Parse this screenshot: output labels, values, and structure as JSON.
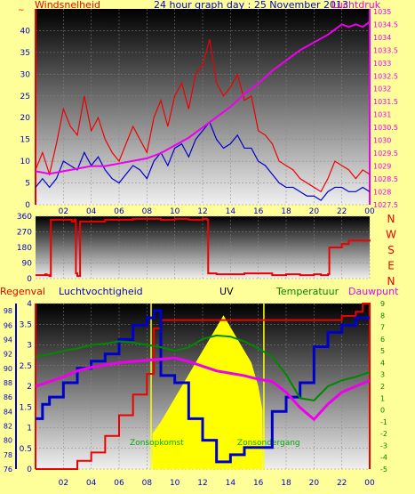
{
  "colors": {
    "background": "#ffff99",
    "wind": "#ee0000",
    "pressure": "#ee00ee",
    "direction": "#ee0000",
    "rain": "#ee0000",
    "humidity": "#0000cc",
    "uv": "#ffff00",
    "temperature": "#008800",
    "dewpoint": "#ee00ee",
    "sunrise": "#00aa00"
  },
  "chart_data": [
    {
      "type": "line",
      "title": "24 hour graph day : 25 November 2013",
      "left_axis_label": "Windsnelheid",
      "left_axis_unit": "~",
      "right_axis_label": "Luchtdruk",
      "x_ticks": [
        "02",
        "04",
        "06",
        "08",
        "10",
        "12",
        "14",
        "16",
        "18",
        "20",
        "22",
        "00"
      ],
      "ylim": [
        0,
        45
      ],
      "y_ticks": [
        "0",
        "5",
        "10",
        "15",
        "20",
        "25",
        "30",
        "35",
        "40"
      ],
      "y2lim": [
        1027.5,
        1035.1
      ],
      "y2_ticks": [
        "1027.5",
        "1028",
        "1028.5",
        "1029",
        "1029.5",
        "1030",
        "1030.5",
        "1031",
        "1031.5",
        "1032",
        "1032.5",
        "1033",
        "1033.5",
        "1034",
        "1034.5",
        "1035"
      ],
      "xlim": [
        0,
        24
      ],
      "series": [
        {
          "key": "wind_gust",
          "color": "#ee0000",
          "x": [
            0,
            0.5,
            1,
            1.5,
            2,
            2.5,
            3,
            3.5,
            4,
            4.5,
            5,
            5.5,
            6,
            6.5,
            7,
            7.5,
            8,
            8.5,
            9,
            9.5,
            10,
            10.5,
            11,
            11.5,
            12,
            12.5,
            13,
            13.5,
            14,
            14.5,
            15,
            15.5,
            16,
            16.5,
            17,
            17.5,
            18,
            18.5,
            19,
            19.5,
            20,
            20.5,
            21,
            21.5,
            22,
            22.5,
            23,
            23.5,
            24
          ],
          "values": [
            8,
            12,
            7,
            14,
            22,
            18,
            16,
            25,
            17,
            20,
            15,
            12,
            10,
            14,
            18,
            15,
            12,
            20,
            24,
            18,
            25,
            28,
            22,
            30,
            32,
            38,
            28,
            25,
            27,
            30,
            24,
            25,
            17,
            16,
            14,
            10,
            9,
            8,
            6,
            5,
            4,
            3,
            6,
            10,
            9,
            8,
            6,
            8,
            7
          ]
        },
        {
          "key": "wind_avg",
          "color": "#0000cc",
          "x": [
            0,
            0.5,
            1,
            1.5,
            2,
            2.5,
            3,
            3.5,
            4,
            4.5,
            5,
            5.5,
            6,
            6.5,
            7,
            7.5,
            8,
            8.5,
            9,
            9.5,
            10,
            10.5,
            11,
            11.5,
            12,
            12.5,
            13,
            13.5,
            14,
            14.5,
            15,
            15.5,
            16,
            16.5,
            17,
            17.5,
            18,
            18.5,
            19,
            19.5,
            20,
            20.5,
            21,
            21.5,
            22,
            22.5,
            23,
            23.5,
            24
          ],
          "values": [
            4,
            6,
            4,
            6,
            10,
            9,
            8,
            12,
            9,
            11,
            8,
            6,
            5,
            7,
            9,
            8,
            6,
            10,
            12,
            9,
            13,
            14,
            11,
            15,
            17,
            19,
            15,
            13,
            14,
            16,
            13,
            13,
            10,
            9,
            7,
            5,
            4,
            4,
            3,
            2,
            2,
            1,
            3,
            4,
            4,
            3,
            3,
            4,
            3
          ]
        },
        {
          "key": "pressure",
          "axis": "right",
          "color": "#ee00ee",
          "x": [
            0,
            1,
            2,
            3,
            4,
            5,
            6,
            7,
            8,
            9,
            10,
            11,
            12,
            13,
            14,
            15,
            16,
            17,
            18,
            19,
            20,
            21,
            21.5,
            22,
            22.5,
            23,
            23.5,
            24
          ],
          "values": [
            1028.8,
            1028.7,
            1028.8,
            1028.9,
            1029.0,
            1029.0,
            1029.1,
            1029.2,
            1029.3,
            1029.5,
            1029.8,
            1030.1,
            1030.5,
            1030.9,
            1031.3,
            1031.8,
            1032.2,
            1032.7,
            1033.1,
            1033.5,
            1033.8,
            1034.1,
            1034.3,
            1034.5,
            1034.4,
            1034.5,
            1034.4,
            1034.6
          ]
        }
      ]
    },
    {
      "type": "line",
      "y_ticks": [
        "360",
        "270",
        "180",
        "90",
        "0"
      ],
      "ylim": [
        0,
        360
      ],
      "xlim": [
        0,
        24
      ],
      "right_labels": [
        "N",
        "W",
        "S",
        "E",
        "N"
      ],
      "series": [
        {
          "key": "wind_direction",
          "color": "#ee0000",
          "x": [
            0,
            0.7,
            0.8,
            1.0,
            1.1,
            2.6,
            2.8,
            2.9,
            3.0,
            3.2,
            5,
            7,
            9,
            10,
            11,
            12,
            12.3,
            12.4,
            13,
            15,
            17,
            18,
            19,
            20,
            20.5,
            21,
            21.1,
            22,
            22.5,
            24
          ],
          "values": [
            20,
            25,
            20,
            15,
            340,
            330,
            340,
            30,
            15,
            330,
            340,
            345,
            340,
            345,
            340,
            345,
            340,
            30,
            25,
            30,
            20,
            25,
            20,
            25,
            20,
            25,
            180,
            200,
            220,
            225
          ]
        }
      ]
    },
    {
      "type": "line",
      "series_labels": [
        "Regenval",
        "Luchtvochtigheid",
        "UV",
        "Temperatuur",
        "Dauwpunt"
      ],
      "annotations": [
        "Zonsopkomst",
        "Zonsondergang"
      ],
      "x_ticks": [
        "02",
        "04",
        "06",
        "08",
        "10",
        "12",
        "14",
        "16",
        "18",
        "20",
        "22",
        "00"
      ],
      "xlim": [
        0,
        24
      ],
      "rain_ylim": [
        0,
        4
      ],
      "rain_ticks": [
        "0",
        "0.5",
        "1",
        "1.5",
        "2",
        "2.5",
        "3",
        "3.5",
        "4"
      ],
      "humidity_ylim": [
        76,
        99
      ],
      "humidity_ticks": [
        "76",
        "78",
        "80",
        "82",
        "84",
        "86",
        "88",
        "90",
        "92",
        "94",
        "96",
        "98"
      ],
      "temp_ylim": [
        -5,
        9
      ],
      "temp_ticks": [
        "-5",
        "-4",
        "-3",
        "-2",
        "-1",
        "0",
        "1",
        "2",
        "3",
        "4",
        "5",
        "6",
        "7",
        "8",
        "9"
      ],
      "sunrise_hour": 8.3,
      "sunset_hour": 16.4,
      "series": [
        {
          "key": "rain",
          "axis": "rain",
          "color": "#ee0000",
          "x": [
            0,
            2,
            3,
            4,
            5,
            6,
            7,
            8,
            8.5,
            9,
            10,
            11,
            12,
            13,
            14,
            15,
            16,
            17,
            18,
            19,
            20,
            21,
            22,
            23,
            23.5,
            24
          ],
          "values": [
            0,
            0,
            0.2,
            0.4,
            0.8,
            1.3,
            1.8,
            2.3,
            3.4,
            3.6,
            3.6,
            3.6,
            3.6,
            3.6,
            3.6,
            3.6,
            3.6,
            3.6,
            3.6,
            3.6,
            3.6,
            3.6,
            3.7,
            3.8,
            4.0,
            0
          ]
        },
        {
          "key": "humidity",
          "axis": "humidity",
          "color": "#0000cc",
          "x": [
            0,
            0.5,
            1,
            2,
            3,
            4,
            5,
            6,
            7,
            8,
            8.5,
            9,
            10,
            11,
            12,
            13,
            14,
            15,
            16,
            17,
            18,
            19,
            20,
            21,
            22,
            23,
            24
          ],
          "values": [
            83,
            85,
            86,
            88,
            90,
            91,
            92,
            94,
            96,
            97,
            98,
            89,
            88,
            83,
            80,
            77,
            78,
            79,
            79,
            84,
            86,
            88,
            93,
            95,
            96,
            97,
            97
          ]
        },
        {
          "key": "temperature",
          "axis": "temp",
          "color": "#008800",
          "x": [
            0,
            1,
            2,
            3,
            4,
            5,
            6,
            7,
            8,
            9,
            10,
            11,
            12,
            13,
            14,
            15,
            16,
            17,
            18,
            19,
            20,
            21,
            22,
            23,
            24
          ],
          "values": [
            4.5,
            4.7,
            5.0,
            5.2,
            5.5,
            5.6,
            5.8,
            5.7,
            5.5,
            5.3,
            5.0,
            5.3,
            6.0,
            6.3,
            6.2,
            5.8,
            5.2,
            4.5,
            3.0,
            1.0,
            0.8,
            2.0,
            2.5,
            2.8,
            3.2
          ]
        },
        {
          "key": "dewpoint",
          "axis": "temp",
          "color": "#ee00ee",
          "x": [
            0,
            1,
            2,
            3,
            4,
            5,
            6,
            7,
            8,
            9,
            10,
            11,
            12,
            13,
            14,
            15,
            16,
            17,
            18,
            19,
            20,
            21,
            22,
            23,
            24
          ],
          "values": [
            2.0,
            2.4,
            2.8,
            3.3,
            3.6,
            3.8,
            4.0,
            4.1,
            4.2,
            4.3,
            4.4,
            4.1,
            3.7,
            3.3,
            3.1,
            2.9,
            2.6,
            2.4,
            1.5,
            0.2,
            -0.8,
            0.5,
            1.5,
            2.0,
            2.5
          ]
        },
        {
          "key": "uv",
          "axis": "temp",
          "color": "#ffff00",
          "x": [
            8.4,
            9,
            9.5,
            10,
            10.5,
            11,
            11.5,
            12,
            12.5,
            13,
            13.5,
            14,
            14.5,
            15,
            15.5,
            16,
            16.3
          ],
          "values": [
            -2,
            -1,
            0,
            1,
            2,
            3,
            4,
            5,
            6,
            7,
            8,
            7,
            6,
            5,
            4,
            2,
            0
          ]
        }
      ]
    }
  ]
}
